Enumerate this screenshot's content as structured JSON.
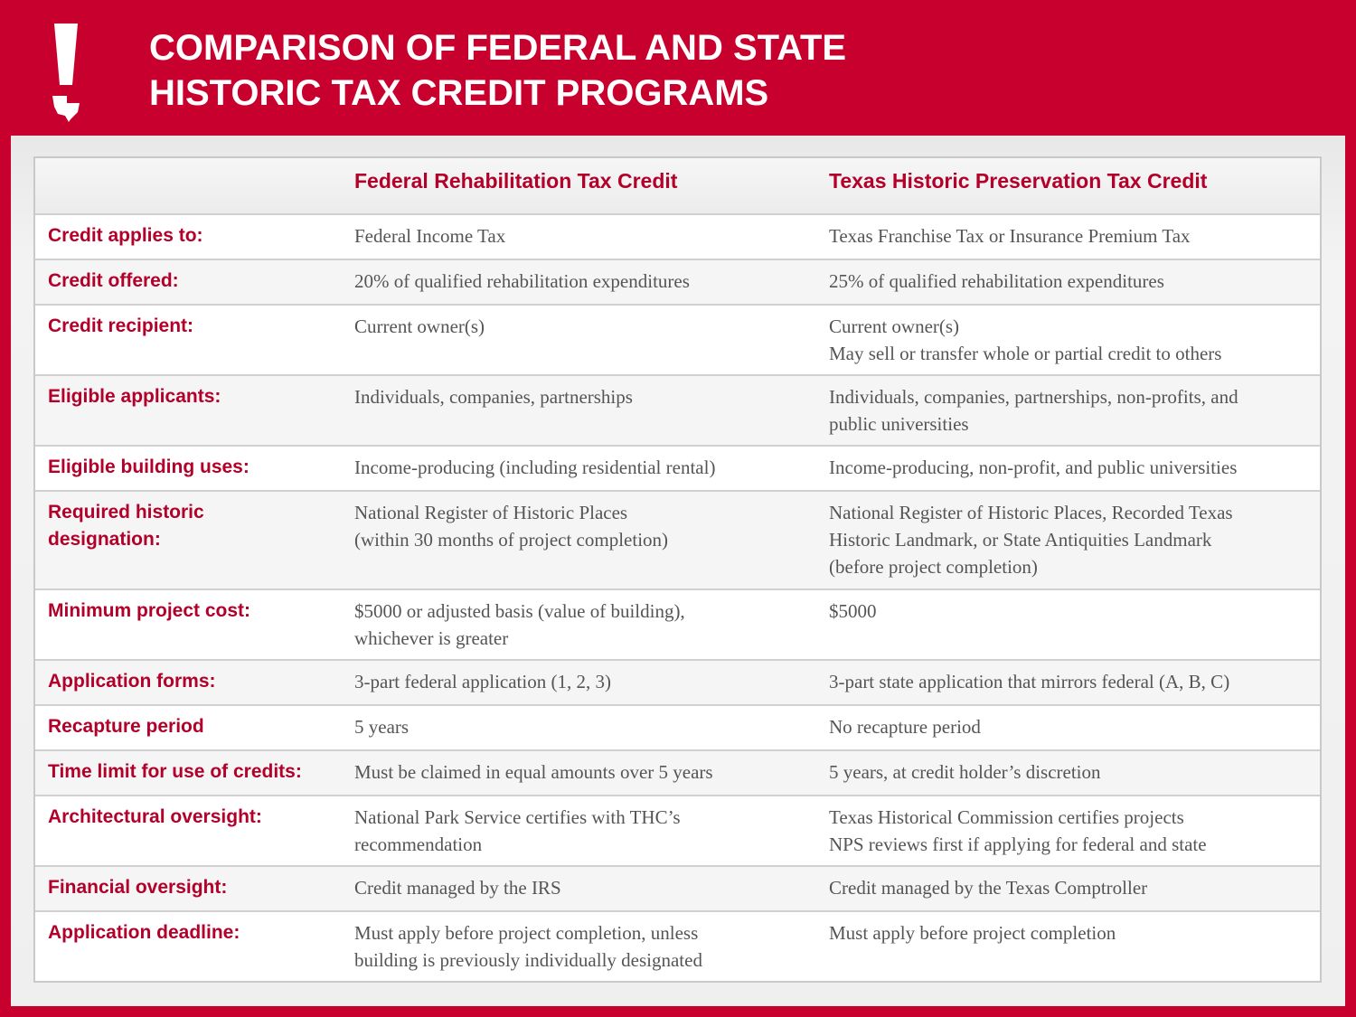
{
  "header": {
    "title": [
      "COMPARISON OF FEDERAL AND STATE",
      "HISTORIC TAX CREDIT PROGRAMS"
    ]
  },
  "table": {
    "columns": [
      "Federal Rehabilitation Tax Credit",
      "Texas Historic Preservation Tax Credit"
    ],
    "rows": [
      {
        "label": [
          "Credit applies to:"
        ],
        "federal": [
          "Federal Income Tax"
        ],
        "texas": [
          "Texas Franchise Tax or Insurance Premium Tax"
        ]
      },
      {
        "label": [
          "Credit offered:"
        ],
        "federal": [
          "20% of qualified rehabilitation expenditures"
        ],
        "texas": [
          "25% of qualified rehabilitation expenditures"
        ]
      },
      {
        "label": [
          "Credit recipient:"
        ],
        "federal": [
          "Current owner(s)"
        ],
        "texas": [
          "Current owner(s)",
          "May sell or transfer whole or partial credit to others"
        ]
      },
      {
        "label": [
          "Eligible applicants:"
        ],
        "federal": [
          "Individuals, companies, partnerships"
        ],
        "texas": [
          "Individuals, companies, partnerships, non-profits, and",
          "public universities"
        ]
      },
      {
        "label": [
          "Eligible building uses:"
        ],
        "federal": [
          "Income-producing (including residential rental)"
        ],
        "texas": [
          "Income-producing, non-profit, and public universities"
        ]
      },
      {
        "label": [
          "Required historic",
          "designation:"
        ],
        "federal": [
          "National Register of Historic Places",
          "(within 30 months of project completion)"
        ],
        "texas": [
          "National Register of Historic Places, Recorded Texas",
          "Historic Landmark, or State Antiquities Landmark",
          "(before project completion)"
        ]
      },
      {
        "label": [
          "Minimum project cost:"
        ],
        "federal": [
          "$5000 or adjusted basis (value of building),",
          "whichever is greater"
        ],
        "texas": [
          "$5000"
        ]
      },
      {
        "label": [
          "Application forms:"
        ],
        "federal": [
          "3-part federal application (1, 2, 3)"
        ],
        "texas": [
          "3-part state application that mirrors federal (A, B, C)"
        ]
      },
      {
        "label": [
          "Recapture period"
        ],
        "federal": [
          "5 years"
        ],
        "texas": [
          "No recapture period"
        ]
      },
      {
        "label": [
          "Time limit for use of credits:"
        ],
        "federal": [
          "Must be claimed in equal amounts over 5 years"
        ],
        "texas": [
          "5 years, at credit holder’s discretion"
        ]
      },
      {
        "label": [
          "Architectural oversight:"
        ],
        "federal": [
          "National Park Service certifies with THC’s",
          "recommendation"
        ],
        "texas": [
          "Texas Historical Commission certifies projects",
          "NPS reviews first if applying for federal and state"
        ]
      },
      {
        "label": [
          "Financial oversight:"
        ],
        "federal": [
          "Credit managed by the IRS"
        ],
        "texas": [
          "Credit managed by the Texas Comptroller"
        ]
      },
      {
        "label": [
          "Application deadline:"
        ],
        "federal": [
          "Must apply before project completion, unless",
          "building is previously individually designated"
        ],
        "texas": [
          "Must apply before project completion"
        ]
      }
    ]
  }
}
